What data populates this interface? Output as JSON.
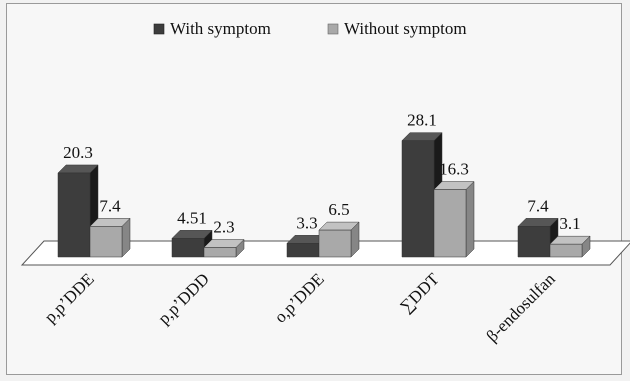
{
  "chart_data": {
    "type": "bar",
    "style": "3d-clustered-column",
    "categories": [
      "p,p’DDE",
      "p,p’DDD",
      "o,p’DDE",
      "∑DDT",
      "β-endosulfan"
    ],
    "series": [
      {
        "name": "With symptom",
        "values": [
          20.3,
          4.51,
          3.3,
          28.1,
          7.4
        ],
        "labels": [
          "20.3",
          "4.51",
          "3.3",
          "28.1",
          "7.4"
        ],
        "color": "#3d3d3d"
      },
      {
        "name": "Without symptom",
        "values": [
          7.4,
          2.3,
          6.5,
          16.3,
          3.1
        ],
        "labels": [
          "7.4",
          "2.3",
          "6.5",
          "16.3",
          "3.1"
        ],
        "color": "#a9a9a9"
      }
    ],
    "legend_position": "top",
    "ylim": [
      0,
      30
    ],
    "gridlines": false
  }
}
